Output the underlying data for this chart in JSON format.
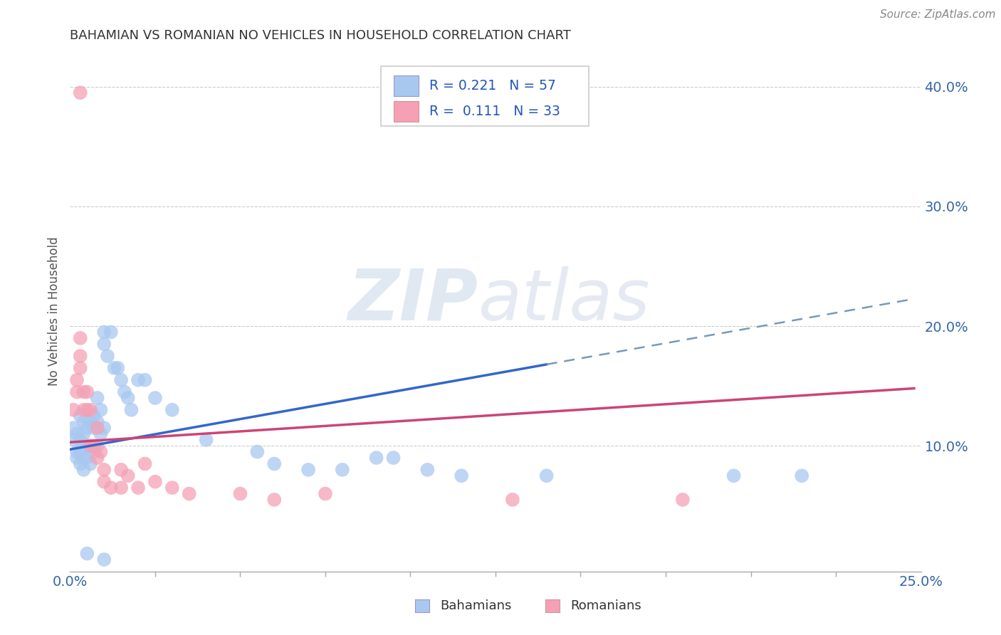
{
  "title": "BAHAMIAN VS ROMANIAN NO VEHICLES IN HOUSEHOLD CORRELATION CHART",
  "source": "Source: ZipAtlas.com",
  "ylabel": "No Vehicles in Household",
  "xlim": [
    0.0,
    0.25
  ],
  "ylim": [
    -0.005,
    0.43
  ],
  "ytick_vals": [
    0.1,
    0.2,
    0.3,
    0.4
  ],
  "ytick_labels": [
    "10.0%",
    "20.0%",
    "30.0%",
    "40.0%"
  ],
  "bahamian_color": "#a8c8f0",
  "romanian_color": "#f5a0b5",
  "bahamian_line_color": "#3366cc",
  "romanian_line_color": "#cc4477",
  "dash_color": "#7799bb",
  "bahamian_R": 0.221,
  "bahamian_N": 57,
  "romanian_R": 0.111,
  "romanian_N": 33,
  "watermark_zip": "ZIP",
  "watermark_atlas": "atlas",
  "background_color": "#ffffff",
  "bahamian_scatter": [
    [
      0.001,
      0.115
    ],
    [
      0.001,
      0.105
    ],
    [
      0.002,
      0.11
    ],
    [
      0.002,
      0.095
    ],
    [
      0.002,
      0.09
    ],
    [
      0.003,
      0.125
    ],
    [
      0.003,
      0.105
    ],
    [
      0.003,
      0.095
    ],
    [
      0.003,
      0.085
    ],
    [
      0.004,
      0.12
    ],
    [
      0.004,
      0.11
    ],
    [
      0.004,
      0.1
    ],
    [
      0.004,
      0.09
    ],
    [
      0.004,
      0.08
    ],
    [
      0.005,
      0.115
    ],
    [
      0.005,
      0.1
    ],
    [
      0.005,
      0.09
    ],
    [
      0.006,
      0.12
    ],
    [
      0.006,
      0.1
    ],
    [
      0.006,
      0.085
    ],
    [
      0.007,
      0.125
    ],
    [
      0.007,
      0.115
    ],
    [
      0.007,
      0.095
    ],
    [
      0.008,
      0.14
    ],
    [
      0.008,
      0.12
    ],
    [
      0.008,
      0.1
    ],
    [
      0.009,
      0.13
    ],
    [
      0.009,
      0.11
    ],
    [
      0.01,
      0.195
    ],
    [
      0.01,
      0.185
    ],
    [
      0.01,
      0.115
    ],
    [
      0.011,
      0.175
    ],
    [
      0.012,
      0.195
    ],
    [
      0.013,
      0.165
    ],
    [
      0.014,
      0.165
    ],
    [
      0.015,
      0.155
    ],
    [
      0.016,
      0.145
    ],
    [
      0.017,
      0.14
    ],
    [
      0.018,
      0.13
    ],
    [
      0.02,
      0.155
    ],
    [
      0.022,
      0.155
    ],
    [
      0.025,
      0.14
    ],
    [
      0.03,
      0.13
    ],
    [
      0.04,
      0.105
    ],
    [
      0.055,
      0.095
    ],
    [
      0.06,
      0.085
    ],
    [
      0.07,
      0.08
    ],
    [
      0.08,
      0.08
    ],
    [
      0.09,
      0.09
    ],
    [
      0.095,
      0.09
    ],
    [
      0.105,
      0.08
    ],
    [
      0.115,
      0.075
    ],
    [
      0.14,
      0.075
    ],
    [
      0.195,
      0.075
    ],
    [
      0.215,
      0.075
    ],
    [
      0.005,
      0.01
    ],
    [
      0.01,
      0.005
    ]
  ],
  "romanian_scatter": [
    [
      0.001,
      0.13
    ],
    [
      0.002,
      0.155
    ],
    [
      0.002,
      0.145
    ],
    [
      0.003,
      0.19
    ],
    [
      0.003,
      0.175
    ],
    [
      0.003,
      0.165
    ],
    [
      0.004,
      0.145
    ],
    [
      0.004,
      0.13
    ],
    [
      0.005,
      0.145
    ],
    [
      0.005,
      0.13
    ],
    [
      0.006,
      0.13
    ],
    [
      0.006,
      0.1
    ],
    [
      0.007,
      0.1
    ],
    [
      0.008,
      0.115
    ],
    [
      0.008,
      0.09
    ],
    [
      0.009,
      0.095
    ],
    [
      0.01,
      0.08
    ],
    [
      0.01,
      0.07
    ],
    [
      0.012,
      0.065
    ],
    [
      0.015,
      0.08
    ],
    [
      0.015,
      0.065
    ],
    [
      0.017,
      0.075
    ],
    [
      0.02,
      0.065
    ],
    [
      0.022,
      0.085
    ],
    [
      0.025,
      0.07
    ],
    [
      0.03,
      0.065
    ],
    [
      0.035,
      0.06
    ],
    [
      0.05,
      0.06
    ],
    [
      0.06,
      0.055
    ],
    [
      0.075,
      0.06
    ],
    [
      0.13,
      0.055
    ],
    [
      0.18,
      0.055
    ],
    [
      0.003,
      0.395
    ]
  ],
  "trend_bah_start_x": 0.0,
  "trend_bah_start_y": 0.097,
  "trend_bah_end_x": 0.14,
  "trend_bah_end_y": 0.168,
  "trend_bah_solid_end": 0.14,
  "trend_bah_dash_end": 0.248,
  "trend_rom_start_x": 0.0,
  "trend_rom_start_y": 0.103,
  "trend_rom_end_x": 0.248,
  "trend_rom_end_y": 0.148
}
